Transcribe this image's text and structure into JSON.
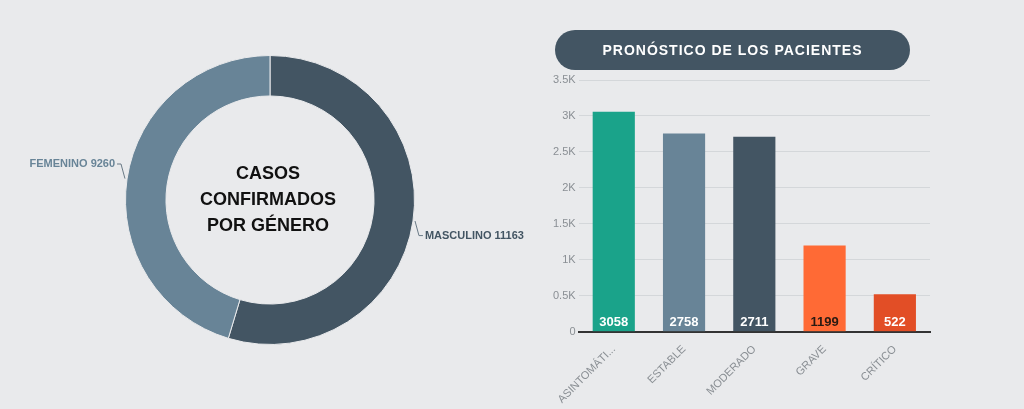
{
  "chart_data": [
    {
      "type": "donut",
      "title": "CASOS CONFIRMADOS POR GÉNERO",
      "categories": [
        "MASCULINO",
        "FEMENINO"
      ],
      "values": [
        11163,
        9260
      ],
      "colors": [
        "#435563",
        "#688497"
      ],
      "data_labels": true,
      "legend": false
    },
    {
      "type": "bar",
      "title": "PRONÓSTICO DE LOS PACIENTES",
      "categories": [
        "ASINTOMÁTI...",
        "ESTABLE",
        "MODERADO",
        "GRAVE",
        "CRÍTICO"
      ],
      "values": [
        3058,
        2758,
        2711,
        1199,
        522
      ],
      "colors": [
        "#1aa38a",
        "#688497",
        "#435563",
        "#ff6a35",
        "#e24e26"
      ],
      "ylim": [
        0,
        3500
      ],
      "yticks": [
        0,
        {
          "value": 500,
          "label": "0.5K"
        },
        {
          "value": 1000,
          "label": "1K"
        },
        {
          "value": 1500,
          "label": "1.5K"
        },
        {
          "value": 2000,
          "label": "2K"
        },
        {
          "value": 2500,
          "label": "2.5K"
        },
        {
          "value": 3000,
          "label": "3K"
        },
        {
          "value": 3500,
          "label": "3.5K"
        }
      ],
      "grid": "y",
      "data_labels": true,
      "legend": false
    }
  ]
}
